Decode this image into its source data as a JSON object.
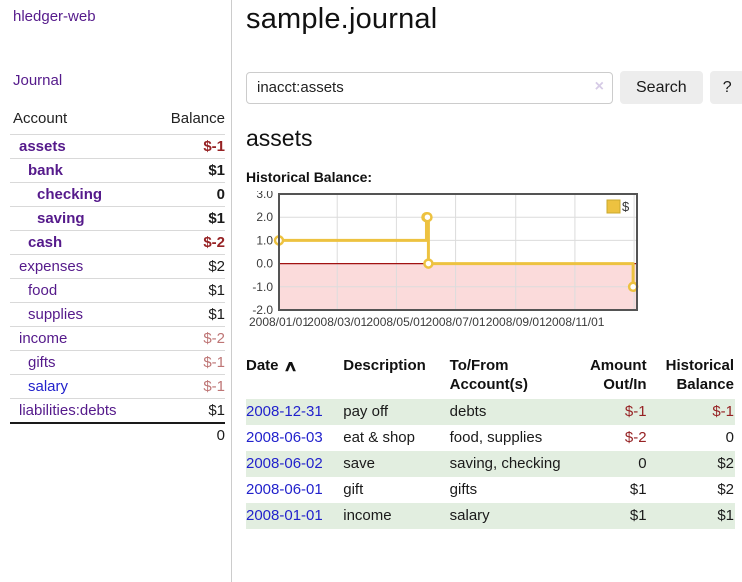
{
  "app": {
    "title": "hledger-web",
    "nav_journal": "Journal"
  },
  "sidebar": {
    "header_account": "Account",
    "header_balance": "Balance",
    "accounts": [
      {
        "name": "assets",
        "balance": "$-1",
        "level": 1,
        "bold": true
      },
      {
        "name": "bank",
        "balance": "$1",
        "level": 2,
        "bold": true
      },
      {
        "name": "checking",
        "balance": "0",
        "level": 3,
        "bold": true
      },
      {
        "name": "saving",
        "balance": "$1",
        "level": 3,
        "bold": true
      },
      {
        "name": "cash",
        "balance": "$-2",
        "level": 2,
        "bold": true
      },
      {
        "name": "expenses",
        "balance": "$2",
        "level": 1,
        "bold": false
      },
      {
        "name": "food",
        "balance": "$1",
        "level": 2,
        "bold": false
      },
      {
        "name": "supplies",
        "balance": "$1",
        "level": 2,
        "bold": false
      },
      {
        "name": "income",
        "balance": "$-2",
        "level": 1,
        "bold": false
      },
      {
        "name": "gifts",
        "balance": "$-1",
        "level": 2,
        "bold": false
      },
      {
        "name": "salary",
        "balance": "$-1",
        "level": 2,
        "bold": false,
        "blue": true
      },
      {
        "name": "liabilities:debts",
        "balance": "$1",
        "level": 1,
        "bold": false
      }
    ],
    "total": "0"
  },
  "main": {
    "title": "sample.journal",
    "search": {
      "value": "inacct:assets",
      "clear_icon": "×",
      "button_label": "Search",
      "help_label": "?"
    },
    "account_heading": "assets",
    "sort_icon": "∧"
  },
  "chart_data": {
    "type": "line",
    "steps": true,
    "title": "Historical Balance:",
    "series": [
      {
        "name": "$",
        "points": [
          [
            "2008/01/01",
            1
          ],
          [
            "2008/06/01",
            2
          ],
          [
            "2008/06/02",
            2
          ],
          [
            "2008/06/03",
            0
          ],
          [
            "2008/12/31",
            -1
          ]
        ]
      }
    ],
    "ylim": [
      -2,
      3
    ],
    "yticks": [
      -2,
      -1,
      0,
      1,
      2,
      3
    ],
    "ytick_labels": [
      "-2.0",
      "-1.0",
      "0.0",
      "1.0",
      "2.0",
      "3.0"
    ],
    "xticks": [
      "2008/01/01",
      "2008/03/01",
      "2008/05/01",
      "2008/07/01",
      "2008/09/01",
      "2008/11/01"
    ],
    "extra_gridlines": [
      "2009/01/01"
    ],
    "x_range": [
      "2008/01/01",
      "2009/01/04"
    ],
    "legend_position": "top-right",
    "negative_region_shaded": true,
    "grid": true
  },
  "register": {
    "columns": [
      "Date",
      "Description",
      "To/From Account(s)",
      "Amount Out/In",
      "Historical Balance"
    ],
    "rows": [
      {
        "date": "2008-12-31",
        "description": "pay off",
        "accounts": "debts",
        "amount": "$-1",
        "balance": "$-1"
      },
      {
        "date": "2008-06-03",
        "description": "eat & shop",
        "accounts": "food, supplies",
        "amount": "$-2",
        "balance": "0"
      },
      {
        "date": "2008-06-02",
        "description": "save",
        "accounts": "saving, checking",
        "amount": "0",
        "balance": "$2"
      },
      {
        "date": "2008-06-01",
        "description": "gift",
        "accounts": "gifts",
        "amount": "$1",
        "balance": "$2"
      },
      {
        "date": "2008-01-01",
        "description": "income",
        "accounts": "salary",
        "amount": "$1",
        "balance": "$1"
      }
    ]
  },
  "colors": {
    "link_purple": "#551a8b",
    "link_blue": "#2222cc",
    "negative_strong": "#962224",
    "negative_soft": "#be7575",
    "row_stripe_green": "#e2eee0",
    "button_gray": "#ededed",
    "chart_line": "#edc240",
    "chart_line_border": "#c9a82e",
    "chart_negative_bg": "#fbdbdb",
    "chart_zero_line": "#a11212",
    "chart_grid": "#dcdcdc",
    "chart_border": "#545454"
  }
}
